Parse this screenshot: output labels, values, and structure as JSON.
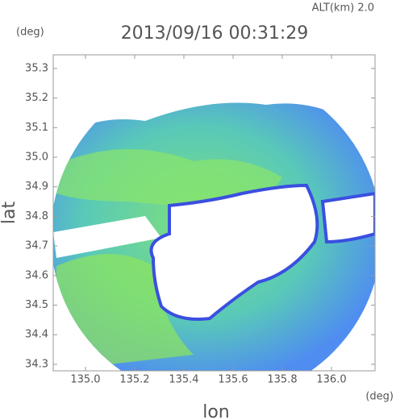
{
  "chart_data": {
    "type": "radar",
    "title": "2013/09/16 00:31:29",
    "subtitle": "ALT(km) 2.0",
    "x_label": "lon",
    "y_label": "lat",
    "x_unit": "(deg)",
    "y_unit": "(deg)",
    "xlim": [
      134.869,
      136.177
    ],
    "ylim": [
      34.278,
      35.346
    ],
    "xticks": [
      {
        "value": 135,
        "label": "135.0"
      },
      135.2,
      135.4,
      135.6,
      135.8,
      {
        "value": 136,
        "label": "136.0"
      }
    ],
    "yticks": [
      35.3,
      35.2,
      35.1,
      {
        "value": 35,
        "label": "35.0"
      },
      34.9,
      34.8,
      34.7,
      34.6,
      34.5,
      34.4,
      34.3
    ]
  }
}
